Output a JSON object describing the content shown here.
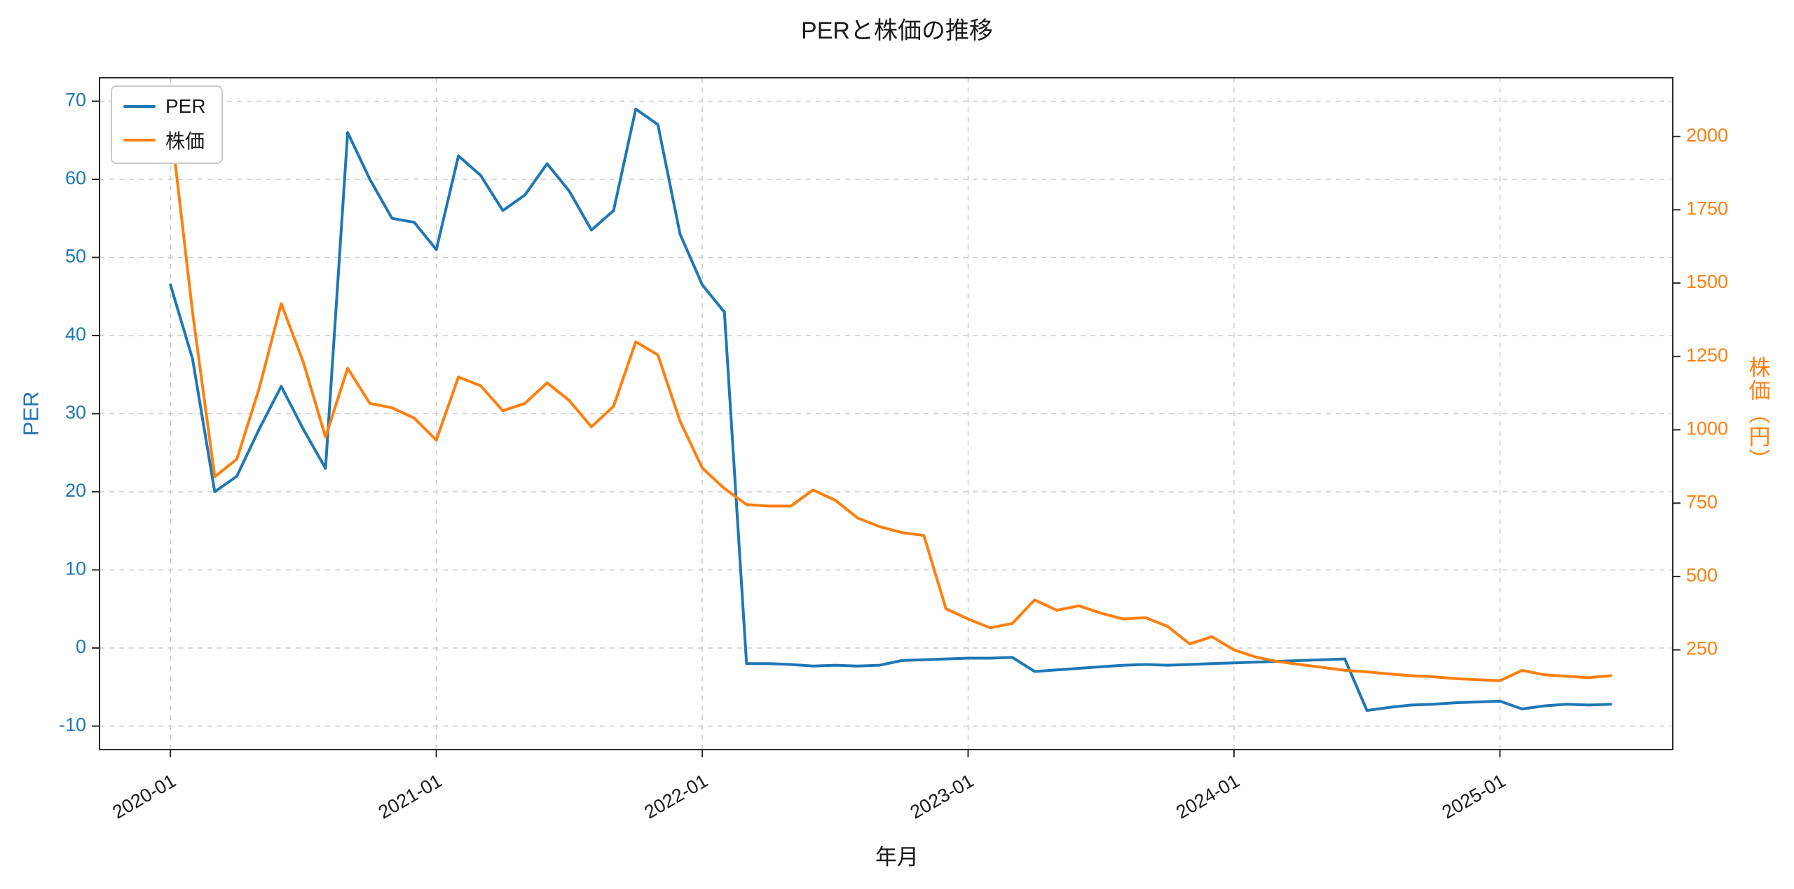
{
  "chart_data": {
    "type": "line",
    "title": "PERと株価の推移",
    "xlabel": "年月",
    "grid": {
      "on": true,
      "style": "dashed"
    },
    "legend": {
      "position": "upper-left",
      "entries": [
        "PER",
        "株価"
      ]
    },
    "x_labels": [
      "2020-01",
      "2020-02",
      "2020-03",
      "2020-04",
      "2020-05",
      "2020-06",
      "2020-07",
      "2020-08",
      "2020-09",
      "2020-10",
      "2020-11",
      "2020-12",
      "2021-01",
      "2021-02",
      "2021-03",
      "2021-04",
      "2021-05",
      "2021-06",
      "2021-07",
      "2021-08",
      "2021-09",
      "2021-10",
      "2021-11",
      "2021-12",
      "2022-01",
      "2022-02",
      "2022-03",
      "2022-04",
      "2022-05",
      "2022-06",
      "2022-07",
      "2022-08",
      "2022-09",
      "2022-10",
      "2022-11",
      "2022-12",
      "2023-01",
      "2023-02",
      "2023-03",
      "2023-04",
      "2023-05",
      "2023-06",
      "2023-07",
      "2023-08",
      "2023-09",
      "2023-10",
      "2023-11",
      "2023-12",
      "2024-01",
      "2024-02",
      "2024-03",
      "2024-04",
      "2024-05",
      "2024-06",
      "2024-07",
      "2024-08",
      "2024-09",
      "2024-10",
      "2024-11",
      "2024-12",
      "2025-01",
      "2025-02",
      "2025-03",
      "2025-04",
      "2025-05",
      "2025-06"
    ],
    "x_ticks": [
      {
        "index": 0,
        "label": "2020-01"
      },
      {
        "index": 12,
        "label": "2021-01"
      },
      {
        "index": 24,
        "label": "2022-01"
      },
      {
        "index": 36,
        "label": "2023-01"
      },
      {
        "index": 48,
        "label": "2024-01"
      },
      {
        "index": 60,
        "label": "2025-01"
      }
    ],
    "left_axis": {
      "label": "PER",
      "color": "#1f77b4",
      "ticks": [
        -10,
        0,
        10,
        20,
        30,
        40,
        50,
        60,
        70
      ],
      "range": [
        -13,
        73
      ]
    },
    "right_axis": {
      "label": "株価（円）",
      "color": "#ff7f0e",
      "ticks": [
        250,
        500,
        750,
        1000,
        1250,
        1500,
        1750,
        2000
      ],
      "range": [
        -90,
        2200
      ]
    },
    "series": [
      {
        "id": "per",
        "name": "PER",
        "axis": "left",
        "color": "#1f77b4",
        "values": [
          46.5,
          37,
          20,
          22,
          28,
          33.5,
          28,
          23,
          66,
          60,
          55,
          54.5,
          51,
          63,
          60.5,
          56,
          58,
          62,
          58.5,
          53.5,
          56,
          69,
          67,
          53,
          46.5,
          43,
          -2,
          -2,
          -2.1,
          -2.3,
          -2.2,
          -2.3,
          -2.2,
          -1.6,
          -1.5,
          -1.4,
          -1.3,
          -1.3,
          -1.2,
          -3,
          -2.8,
          -2.6,
          -2.4,
          -2.2,
          -2.1,
          -2.2,
          -2.1,
          -2,
          -1.9,
          -1.8,
          -1.7,
          -1.6,
          -1.5,
          -1.4,
          -8,
          -7.6,
          -7.3,
          -7.2,
          -7,
          -6.9,
          -6.8,
          -7.8,
          -7.4,
          -7.2,
          -7.3,
          -7.2
        ]
      },
      {
        "id": "kabuka",
        "name": "株価",
        "axis": "right",
        "color": "#ff7f0e",
        "values": [
          2050,
          1400,
          840,
          900,
          1140,
          1430,
          1230,
          975,
          1210,
          1090,
          1075,
          1040,
          965,
          1180,
          1150,
          1065,
          1090,
          1160,
          1100,
          1010,
          1080,
          1300,
          1255,
          1030,
          870,
          800,
          745,
          740,
          740,
          795,
          760,
          700,
          670,
          650,
          640,
          390,
          355,
          325,
          340,
          420,
          385,
          400,
          375,
          355,
          360,
          330,
          270,
          295,
          250,
          225,
          210,
          200,
          190,
          180,
          175,
          168,
          162,
          158,
          152,
          148,
          145,
          180,
          165,
          160,
          155,
          162
        ]
      }
    ]
  }
}
